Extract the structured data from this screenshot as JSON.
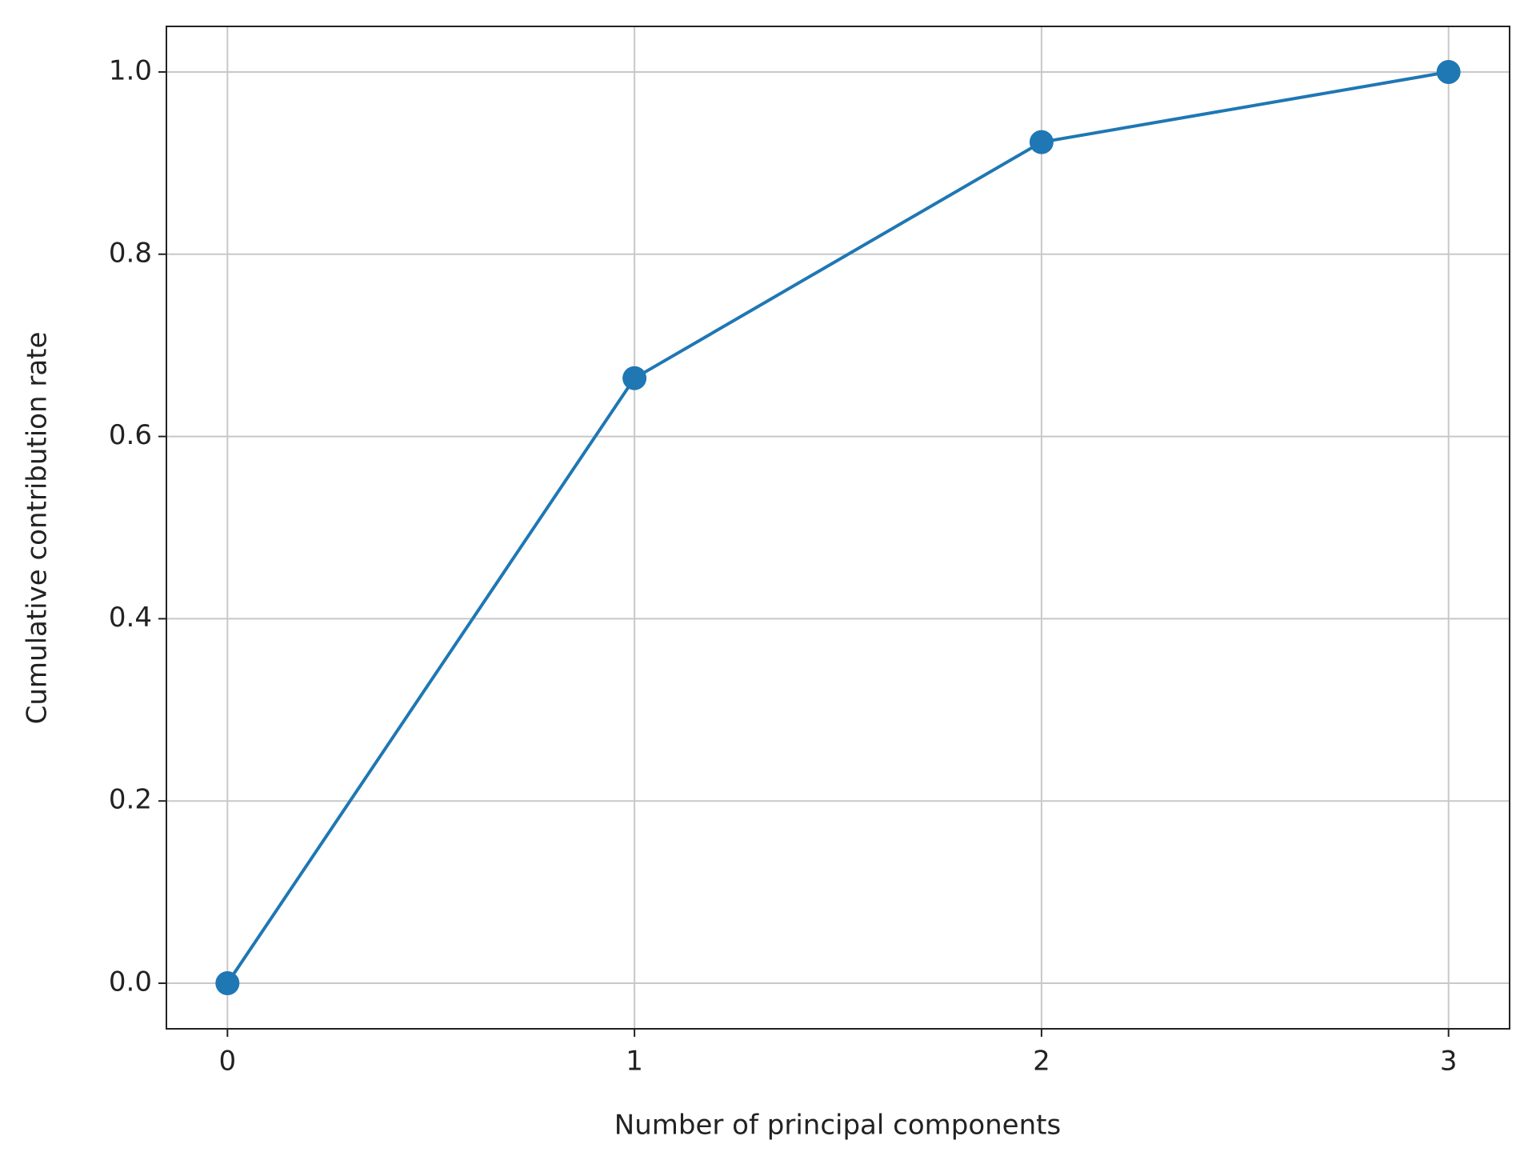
{
  "chart_data": {
    "type": "line",
    "xlabel": "Number of principal components",
    "ylabel": "Cumulative contribution rate",
    "x": [
      0,
      1,
      2,
      3
    ],
    "series": [
      {
        "color": "#1f77b4",
        "values": [
          0,
          0.664,
          0.923,
          1.0
        ]
      }
    ],
    "xlim": [
      -0.15,
      3.15
    ],
    "ylim": [
      -0.05,
      1.05
    ],
    "xticks": [
      0,
      1,
      2,
      3
    ],
    "yticks": [
      {
        "value": 0,
        "label": "0.0"
      },
      0.2,
      0.4,
      0.6,
      0.8,
      {
        "value": 1,
        "label": "1.0"
      }
    ],
    "grid": true,
    "markers": true
  }
}
